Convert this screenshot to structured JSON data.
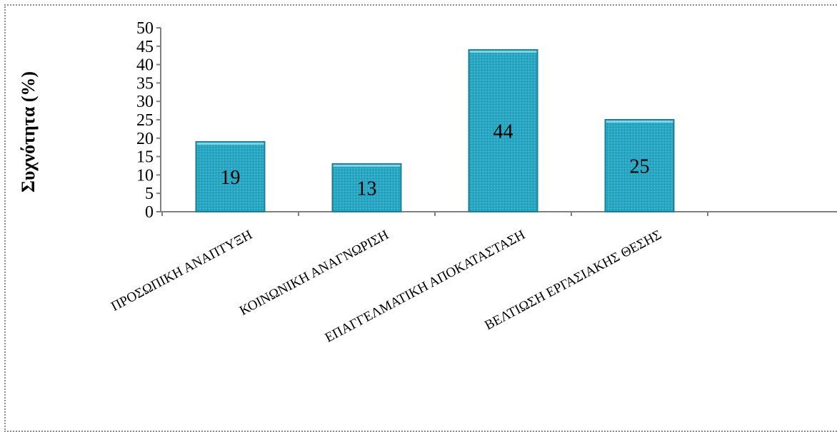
{
  "chart_data": {
    "type": "bar",
    "categories": [
      "ΠΡΟΣΩΠΙΚΗ ΑΝΑΠΤΥΞΗ",
      "ΚΟΙΝΩΝΙΚΗ ΑΝΑΓΝΩΡΙΣΗ",
      "ΕΠΑΓΓΕΛΜΑΤΙΚΗ  ΑΠΟΚΑΤΑΣΤΑΣΗ",
      "ΒΕΛΤΙΩΣΗ ΕΡΓΑΣΙΑΚΗΣ ΘΕΣΗΣ"
    ],
    "values": [
      19,
      13,
      44,
      25
    ],
    "data_labels": [
      "19",
      "13",
      "44",
      "25"
    ],
    "ylabel": "Συχνότητα (%)",
    "ylim": [
      0,
      50
    ],
    "yticks": [
      "0",
      "5",
      "10",
      "15",
      "20",
      "25",
      "30",
      "35",
      "40",
      "45",
      "50"
    ],
    "grid": false,
    "legend": "none",
    "bar_color": "#29a6c2",
    "bar_edge_color": "#1d7f95"
  }
}
